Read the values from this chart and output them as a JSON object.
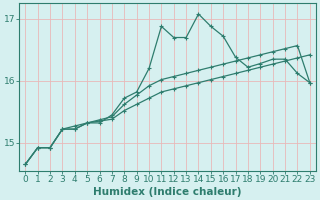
{
  "xlabel": "Humidex (Indice chaleur)",
  "background_color": "#d6f0f0",
  "grid_color": "#e8b8b8",
  "line_color": "#2e7d6e",
  "xlim": [
    -0.5,
    23.5
  ],
  "ylim": [
    14.55,
    17.25
  ],
  "yticks": [
    15,
    16,
    17
  ],
  "xticks": [
    0,
    1,
    2,
    3,
    4,
    5,
    6,
    7,
    8,
    9,
    10,
    11,
    12,
    13,
    14,
    15,
    16,
    17,
    18,
    19,
    20,
    21,
    22,
    23
  ],
  "series1_x": [
    0,
    1,
    2,
    3,
    4,
    5,
    6,
    7,
    8,
    9,
    10,
    11,
    12,
    13,
    14,
    15,
    16,
    17,
    18,
    19,
    20,
    21,
    22,
    23
  ],
  "series1_y": [
    14.65,
    14.92,
    14.92,
    15.22,
    15.22,
    15.32,
    15.35,
    15.38,
    15.52,
    15.62,
    15.72,
    15.82,
    15.87,
    15.92,
    15.97,
    16.02,
    16.07,
    16.12,
    16.17,
    16.22,
    16.27,
    16.32,
    16.37,
    16.42
  ],
  "series2_x": [
    0,
    1,
    2,
    3,
    4,
    5,
    6,
    7,
    8,
    9,
    10,
    11,
    12,
    13,
    14,
    15,
    16,
    17,
    18,
    19,
    20,
    21,
    22,
    23
  ],
  "series2_y": [
    14.65,
    14.92,
    14.92,
    15.22,
    15.22,
    15.32,
    15.37,
    15.42,
    15.62,
    15.77,
    15.92,
    16.02,
    16.07,
    16.12,
    16.17,
    16.22,
    16.27,
    16.32,
    16.37,
    16.42,
    16.47,
    16.52,
    16.57,
    15.97
  ],
  "series3_x": [
    0,
    1,
    2,
    3,
    4,
    5,
    6,
    7,
    8,
    9,
    10,
    11,
    12,
    13,
    14,
    15,
    16,
    17,
    18,
    19,
    20,
    21,
    22,
    23
  ],
  "series3_y": [
    14.65,
    14.92,
    14.92,
    15.22,
    15.27,
    15.32,
    15.32,
    15.45,
    15.72,
    15.82,
    16.2,
    16.88,
    16.7,
    16.7,
    17.08,
    16.88,
    16.72,
    16.38,
    16.22,
    16.28,
    16.35,
    16.35,
    16.12,
    15.97
  ],
  "fontsize_tick": 6.5,
  "fontsize_label": 7.5
}
